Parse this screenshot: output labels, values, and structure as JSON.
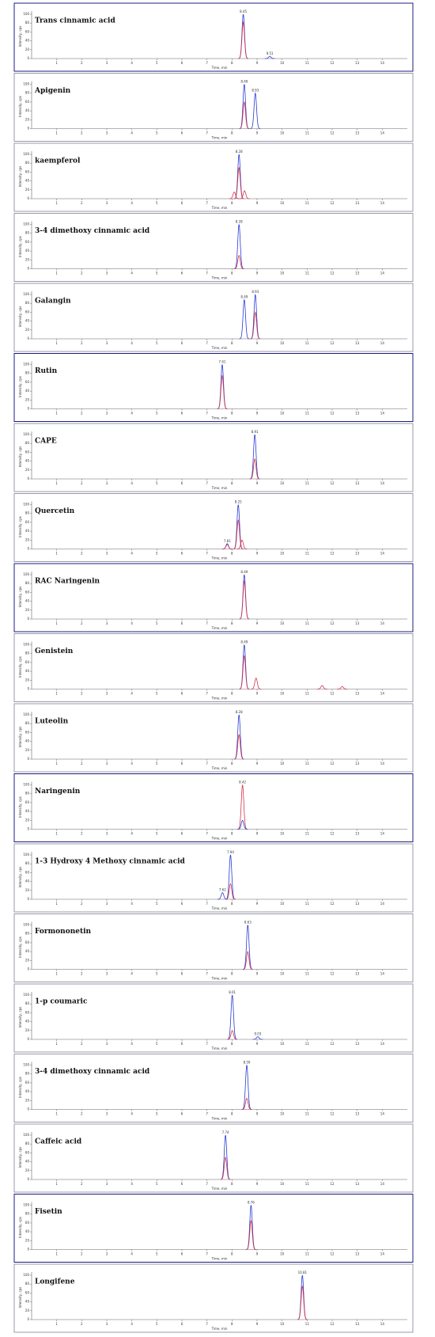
{
  "chart_data": [
    {
      "type": "line",
      "title": "Trans cinnamic acid",
      "x_label": "Time, min",
      "y_label": "Intensity, cps",
      "xlim": [
        0,
        15
      ],
      "xticks": [
        1,
        2,
        3,
        4,
        5,
        6,
        7,
        8,
        9,
        10,
        11,
        12,
        13,
        14
      ],
      "ylim": [
        0,
        100
      ],
      "yticks": [
        0,
        20,
        40,
        60,
        80,
        100
      ],
      "frame_color": "#1c1c80",
      "series": [
        {
          "color": "#2a3bd1",
          "x": [
            8.45,
            9.51
          ],
          "values": [
            100,
            5
          ]
        },
        {
          "color": "#d3344a",
          "x": [
            8.45
          ],
          "values": [
            82
          ]
        }
      ]
    },
    {
      "type": "line",
      "title": "Apigenin",
      "x_label": "Time, min",
      "y_label": "Intensity, cps",
      "xlim": [
        0,
        15
      ],
      "xticks": [
        1,
        2,
        3,
        4,
        5,
        6,
        7,
        8,
        9,
        10,
        11,
        12,
        13,
        14
      ],
      "ylim": [
        0,
        100
      ],
      "yticks": [
        0,
        20,
        40,
        60,
        80,
        100
      ],
      "frame_color": "#9a9aa8",
      "series": [
        {
          "color": "#2a3bd1",
          "x": [
            8.49,
            8.93
          ],
          "values": [
            100,
            80
          ]
        },
        {
          "color": "#d3344a",
          "x": [
            8.49
          ],
          "values": [
            60
          ]
        }
      ]
    },
    {
      "type": "line",
      "title": "kaempferol",
      "x_label": "Time, min",
      "y_label": "Intensity, cps",
      "xlim": [
        0,
        15
      ],
      "xticks": [
        1,
        2,
        3,
        4,
        5,
        6,
        7,
        8,
        9,
        10,
        11,
        12,
        13,
        14
      ],
      "ylim": [
        0,
        100
      ],
      "yticks": [
        0,
        20,
        40,
        60,
        80,
        100
      ],
      "frame_color": "#9a9aa8",
      "series": [
        {
          "color": "#2a3bd1",
          "x": [
            8.28
          ],
          "values": [
            100
          ]
        },
        {
          "color": "#d3344a",
          "x": [
            8.09,
            8.28,
            8.5
          ],
          "values": [
            15,
            70,
            18
          ]
        }
      ]
    },
    {
      "type": "line",
      "title": "3-4 dimethoxy cinnamic acid",
      "x_label": "Time, min",
      "y_label": "Intensity, cps",
      "xlim": [
        0,
        15
      ],
      "xticks": [
        1,
        2,
        3,
        4,
        5,
        6,
        7,
        8,
        9,
        10,
        11,
        12,
        13,
        14
      ],
      "ylim": [
        0,
        100
      ],
      "yticks": [
        0,
        20,
        40,
        60,
        80,
        100
      ],
      "frame_color": "#9a9aa8",
      "series": [
        {
          "color": "#2a3bd1",
          "x": [
            8.28
          ],
          "values": [
            100
          ]
        },
        {
          "color": "#d3344a",
          "x": [
            8.28
          ],
          "values": [
            30
          ]
        }
      ]
    },
    {
      "type": "line",
      "title": "Galangin",
      "x_label": "Time, min",
      "y_label": "Intensity, cps",
      "xlim": [
        0,
        15
      ],
      "xticks": [
        1,
        2,
        3,
        4,
        5,
        6,
        7,
        8,
        9,
        10,
        11,
        12,
        13,
        14
      ],
      "ylim": [
        0,
        100
      ],
      "yticks": [
        0,
        20,
        40,
        60,
        80,
        100
      ],
      "frame_color": "#9a9aa8",
      "series": [
        {
          "color": "#2a3bd1",
          "x": [
            8.49,
            8.93
          ],
          "values": [
            88,
            100
          ]
        },
        {
          "color": "#d3344a",
          "x": [
            8.93
          ],
          "values": [
            60
          ]
        }
      ]
    },
    {
      "type": "line",
      "title": "Rutin",
      "x_label": "Time, min",
      "y_label": "Intensity, cps",
      "xlim": [
        0,
        15
      ],
      "xticks": [
        1,
        2,
        3,
        4,
        5,
        6,
        7,
        8,
        9,
        10,
        11,
        12,
        13,
        14
      ],
      "ylim": [
        0,
        100
      ],
      "yticks": [
        0,
        20,
        40,
        60,
        80,
        100
      ],
      "frame_color": "#1c1c80",
      "series": [
        {
          "color": "#2a3bd1",
          "x": [
            7.61
          ],
          "values": [
            100
          ]
        },
        {
          "color": "#d3344a",
          "x": [
            7.61
          ],
          "values": [
            75
          ]
        }
      ]
    },
    {
      "type": "line",
      "title": "CAPE",
      "x_label": "Time, min",
      "y_label": "Intensity, cps",
      "xlim": [
        0,
        15
      ],
      "xticks": [
        1,
        2,
        3,
        4,
        5,
        6,
        7,
        8,
        9,
        10,
        11,
        12,
        13,
        14
      ],
      "ylim": [
        0,
        100
      ],
      "yticks": [
        0,
        20,
        40,
        60,
        80,
        100
      ],
      "frame_color": "#9a9aa8",
      "series": [
        {
          "color": "#2a3bd1",
          "x": [
            8.91
          ],
          "values": [
            100
          ]
        },
        {
          "color": "#d3344a",
          "x": [
            8.91
          ],
          "values": [
            45
          ]
        }
      ]
    },
    {
      "type": "line",
      "title": "Quercetin",
      "x_label": "Time, min",
      "y_label": "Intensity, cps",
      "xlim": [
        0,
        15
      ],
      "xticks": [
        1,
        2,
        3,
        4,
        5,
        6,
        7,
        8,
        9,
        10,
        11,
        12,
        13,
        14
      ],
      "ylim": [
        0,
        100
      ],
      "yticks": [
        0,
        20,
        40,
        60,
        80,
        100
      ],
      "frame_color": "#9a9aa8",
      "series": [
        {
          "color": "#2a3bd1",
          "x": [
            8.25,
            7.81
          ],
          "values": [
            100,
            12
          ]
        },
        {
          "color": "#d3344a",
          "x": [
            7.81,
            8.25,
            8.4
          ],
          "values": [
            10,
            65,
            20
          ]
        }
      ]
    },
    {
      "type": "line",
      "title": "RAC Naringenin",
      "x_label": "Time, min",
      "y_label": "Intensity, cps",
      "xlim": [
        0,
        15
      ],
      "xticks": [
        1,
        2,
        3,
        4,
        5,
        6,
        7,
        8,
        9,
        10,
        11,
        12,
        13,
        14
      ],
      "ylim": [
        0,
        100
      ],
      "yticks": [
        0,
        20,
        40,
        60,
        80,
        100
      ],
      "frame_color": "#1c1c80",
      "series": [
        {
          "color": "#2a3bd1",
          "x": [
            8.49
          ],
          "values": [
            100
          ]
        },
        {
          "color": "#d3344a",
          "x": [
            8.49
          ],
          "values": [
            85
          ]
        }
      ]
    },
    {
      "type": "line",
      "title": "Genistein",
      "x_label": "Time, min",
      "y_label": "Intensity, cps",
      "xlim": [
        0,
        15
      ],
      "xticks": [
        1,
        2,
        3,
        4,
        5,
        6,
        7,
        8,
        9,
        10,
        11,
        12,
        13,
        14
      ],
      "ylim": [
        0,
        100
      ],
      "yticks": [
        0,
        20,
        40,
        60,
        80,
        100
      ],
      "frame_color": "#9a9aa8",
      "series": [
        {
          "color": "#2a3bd1",
          "x": [
            8.49
          ],
          "values": [
            100
          ]
        },
        {
          "color": "#d3344a",
          "x": [
            8.49,
            8.96,
            11.6,
            12.4
          ],
          "values": [
            75,
            25,
            8,
            6
          ]
        }
      ]
    },
    {
      "type": "line",
      "title": "Luteolin",
      "x_label": "Time, min",
      "y_label": "Intensity, cps",
      "xlim": [
        0,
        15
      ],
      "xticks": [
        1,
        2,
        3,
        4,
        5,
        6,
        7,
        8,
        9,
        10,
        11,
        12,
        13,
        14
      ],
      "ylim": [
        0,
        100
      ],
      "yticks": [
        0,
        20,
        40,
        60,
        80,
        100
      ],
      "frame_color": "#9a9aa8",
      "series": [
        {
          "color": "#2a3bd1",
          "x": [
            8.28
          ],
          "values": [
            100
          ]
        },
        {
          "color": "#d3344a",
          "x": [
            8.28
          ],
          "values": [
            55
          ]
        }
      ]
    },
    {
      "type": "line",
      "title": "Naringenin",
      "x_label": "Time, min",
      "y_label": "Intensity, cps",
      "xlim": [
        0,
        15
      ],
      "xticks": [
        1,
        2,
        3,
        4,
        5,
        6,
        7,
        8,
        9,
        10,
        11,
        12,
        13,
        14
      ],
      "ylim": [
        0,
        100
      ],
      "yticks": [
        0,
        20,
        40,
        60,
        80,
        100
      ],
      "frame_color": "#1c1c80",
      "series": [
        {
          "color": "#d3344a",
          "x": [
            8.42
          ],
          "values": [
            100
          ]
        },
        {
          "color": "#2a3bd1",
          "x": [
            8.42
          ],
          "values": [
            20
          ]
        }
      ]
    },
    {
      "type": "line",
      "title": "1-3 Hydroxy 4 Methoxy cinnamic acid",
      "x_label": "Time, min",
      "y_label": "Intensity, cps",
      "xlim": [
        0,
        15
      ],
      "xticks": [
        1,
        2,
        3,
        4,
        5,
        6,
        7,
        8,
        9,
        10,
        11,
        12,
        13,
        14
      ],
      "ylim": [
        0,
        100
      ],
      "yticks": [
        0,
        20,
        40,
        60,
        80,
        100
      ],
      "frame_color": "#9a9aa8",
      "series": [
        {
          "color": "#2a3bd1",
          "x": [
            7.94,
            7.62
          ],
          "values": [
            100,
            15
          ]
        },
        {
          "color": "#d3344a",
          "x": [
            7.94
          ],
          "values": [
            35
          ]
        }
      ]
    },
    {
      "type": "line",
      "title": "Formononetin",
      "x_label": "Time, min",
      "y_label": "Intensity, cps",
      "xlim": [
        0,
        15
      ],
      "xticks": [
        1,
        2,
        3,
        4,
        5,
        6,
        7,
        8,
        9,
        10,
        11,
        12,
        13,
        14
      ],
      "ylim": [
        0,
        100
      ],
      "yticks": [
        0,
        20,
        40,
        60,
        80,
        100
      ],
      "frame_color": "#9a9aa8",
      "series": [
        {
          "color": "#2a3bd1",
          "x": [
            8.63
          ],
          "values": [
            100
          ]
        },
        {
          "color": "#d3344a",
          "x": [
            8.63
          ],
          "values": [
            40
          ]
        }
      ]
    },
    {
      "type": "line",
      "title": "1-p coumaric",
      "x_label": "Time, min",
      "y_label": "Intensity, cps",
      "xlim": [
        0,
        15
      ],
      "xticks": [
        1,
        2,
        3,
        4,
        5,
        6,
        7,
        8,
        9,
        10,
        11,
        12,
        13,
        14
      ],
      "ylim": [
        0,
        100
      ],
      "yticks": [
        0,
        20,
        40,
        60,
        80,
        100
      ],
      "frame_color": "#9a9aa8",
      "series": [
        {
          "color": "#2a3bd1",
          "x": [
            8.01,
            9.03
          ],
          "values": [
            100,
            6
          ]
        },
        {
          "color": "#d3344a",
          "x": [
            8.01
          ],
          "values": [
            20
          ]
        }
      ]
    },
    {
      "type": "line",
      "title": "3-4 dimethoxy cinnamic acid",
      "x_label": "Time, min",
      "y_label": "Intensity, cps",
      "xlim": [
        0,
        15
      ],
      "xticks": [
        1,
        2,
        3,
        4,
        5,
        6,
        7,
        8,
        9,
        10,
        11,
        12,
        13,
        14
      ],
      "ylim": [
        0,
        100
      ],
      "yticks": [
        0,
        20,
        40,
        60,
        80,
        100
      ],
      "frame_color": "#9a9aa8",
      "series": [
        {
          "color": "#2a3bd1",
          "x": [
            8.59
          ],
          "values": [
            100
          ]
        },
        {
          "color": "#d3344a",
          "x": [
            8.59
          ],
          "values": [
            25
          ]
        }
      ]
    },
    {
      "type": "line",
      "title": "Caffeic acid",
      "x_label": "Time, min",
      "y_label": "Intensity, cps",
      "xlim": [
        0,
        15
      ],
      "xticks": [
        1,
        2,
        3,
        4,
        5,
        6,
        7,
        8,
        9,
        10,
        11,
        12,
        13,
        14
      ],
      "ylim": [
        0,
        100
      ],
      "yticks": [
        0,
        20,
        40,
        60,
        80,
        100
      ],
      "frame_color": "#9a9aa8",
      "series": [
        {
          "color": "#2a3bd1",
          "x": [
            7.74
          ],
          "values": [
            100
          ]
        },
        {
          "color": "#d3344a",
          "x": [
            7.74
          ],
          "values": [
            50
          ]
        }
      ]
    },
    {
      "type": "line",
      "title": "Fisetin",
      "x_label": "Time, min",
      "y_label": "Intensity, cps",
      "xlim": [
        0,
        15
      ],
      "xticks": [
        1,
        2,
        3,
        4,
        5,
        6,
        7,
        8,
        9,
        10,
        11,
        12,
        13,
        14
      ],
      "ylim": [
        0,
        100
      ],
      "yticks": [
        0,
        20,
        40,
        60,
        80,
        100
      ],
      "frame_color": "#1c1c80",
      "series": [
        {
          "color": "#2a3bd1",
          "x": [
            8.76
          ],
          "values": [
            100
          ]
        },
        {
          "color": "#d3344a",
          "x": [
            8.76
          ],
          "values": [
            65
          ]
        }
      ]
    },
    {
      "type": "line",
      "title": "Longifene",
      "x_label": "Time, min",
      "y_label": "Intensity, cps",
      "xlim": [
        0,
        15
      ],
      "xticks": [
        1,
        2,
        3,
        4,
        5,
        6,
        7,
        8,
        9,
        10,
        11,
        12,
        13,
        14
      ],
      "ylim": [
        0,
        100
      ],
      "yticks": [
        0,
        20,
        40,
        60,
        80,
        100
      ],
      "frame_color": "#9a9aa8",
      "series": [
        {
          "color": "#2a3bd1",
          "x": [
            10.81
          ],
          "values": [
            100
          ]
        },
        {
          "color": "#d3344a",
          "x": [
            10.81
          ],
          "values": [
            75
          ]
        }
      ]
    }
  ]
}
